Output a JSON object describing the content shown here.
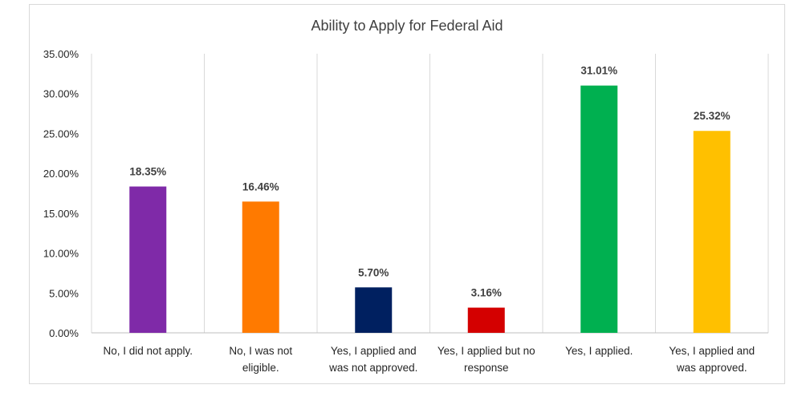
{
  "chart_data": {
    "type": "bar",
    "title": "Ability to Apply for Federal Aid",
    "xlabel": "",
    "ylabel": "",
    "ylim": [
      0,
      0.35
    ],
    "yticks": [
      0,
      0.05,
      0.1,
      0.15,
      0.2,
      0.25,
      0.3,
      0.35
    ],
    "ytick_labels": [
      "0.00%",
      "5.00%",
      "10.00%",
      "15.00%",
      "20.00%",
      "25.00%",
      "30.00%",
      "35.00%"
    ],
    "grid": "vertical",
    "legend": "none",
    "categories": [
      [
        "No, I did not apply."
      ],
      [
        "No, I was not",
        "eligible."
      ],
      [
        "Yes, I applied and",
        "was not approved."
      ],
      [
        "Yes, I applied but no",
        "response"
      ],
      [
        "Yes, I applied."
      ],
      [
        "Yes, I applied and",
        "was approved."
      ]
    ],
    "values": [
      0.1835,
      0.1646,
      0.057,
      0.0316,
      0.3101,
      0.2532
    ],
    "value_labels": [
      "18.35%",
      "16.46%",
      "5.70%",
      "3.16%",
      "31.01%",
      "25.32%"
    ],
    "colors": [
      "#7f2aa8",
      "#ff7a00",
      "#002060",
      "#d40000",
      "#00b050",
      "#ffc000"
    ]
  }
}
